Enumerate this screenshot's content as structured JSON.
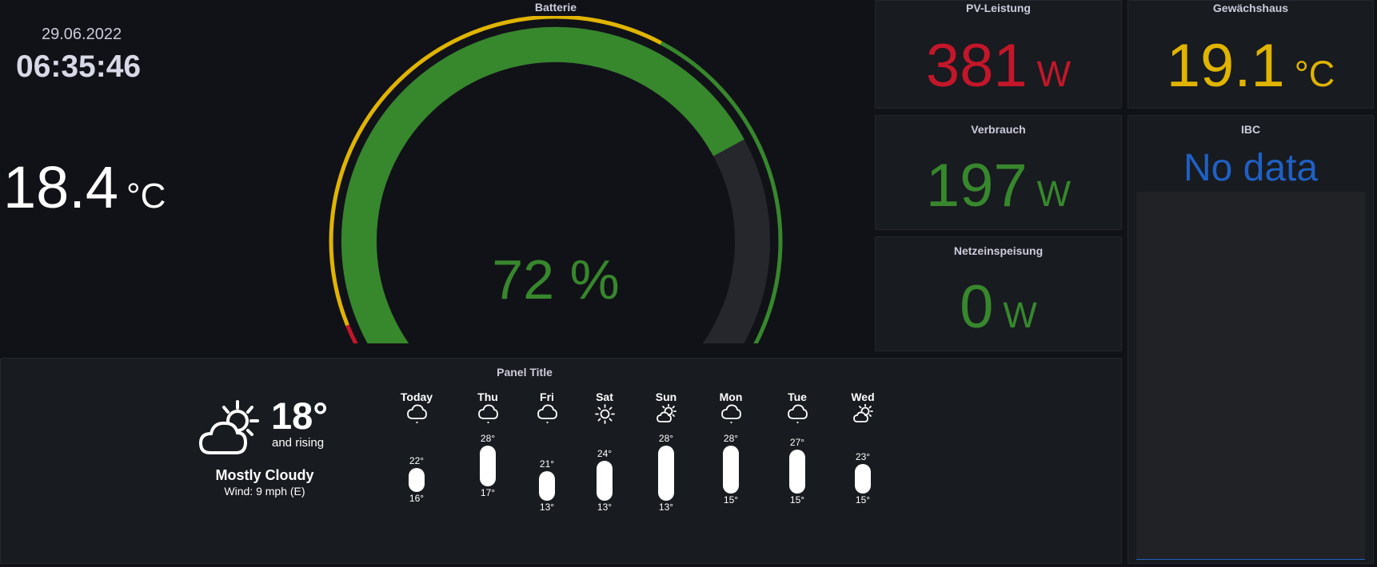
{
  "clock": {
    "date": "29.06.2022",
    "time": "06:35:46"
  },
  "outside_temp": {
    "value": "18.4",
    "unit": "°C"
  },
  "battery": {
    "title": "Batterie",
    "value": "72 %",
    "percent": 72,
    "color": "#37872d",
    "thresholds": {
      "red": "#c4162a",
      "yellow": "#e0b400",
      "green": "#37872d"
    }
  },
  "pv": {
    "title": "PV-Leistung",
    "value": "381",
    "unit": "W",
    "color": "#c4162a"
  },
  "verbrauch": {
    "title": "Verbrauch",
    "value": "197",
    "unit": "W",
    "color": "#37872d"
  },
  "netz": {
    "title": "Netzeinspeisung",
    "value": "0",
    "unit": "W",
    "color": "#37872d"
  },
  "gewaechshaus": {
    "title": "Gewächshaus",
    "value": "19.1",
    "unit": "°C",
    "color": "#e0b400"
  },
  "ibc": {
    "title": "IBC",
    "value": "No data",
    "color": "#1f60c4"
  },
  "weather": {
    "title": "Panel Title",
    "current": {
      "icon": "partly-sunny-icon",
      "temp": "18°",
      "trend": "and rising",
      "condition": "Mostly Cloudy",
      "wind": "Wind: 9 mph (E)"
    },
    "forecast": [
      {
        "day": "Today",
        "icon": "cloud-icon",
        "high": "22°",
        "low": "16°"
      },
      {
        "day": "Thu",
        "icon": "cloud-icon",
        "high": "28°",
        "low": "17°"
      },
      {
        "day": "Fri",
        "icon": "cloud-icon",
        "high": "21°",
        "low": "13°"
      },
      {
        "day": "Sat",
        "icon": "sun-icon",
        "high": "24°",
        "low": "13°"
      },
      {
        "day": "Sun",
        "icon": "partly-sunny-icon",
        "high": "28°",
        "low": "13°"
      },
      {
        "day": "Mon",
        "icon": "cloud-icon",
        "high": "28°",
        "low": "15°"
      },
      {
        "day": "Tue",
        "icon": "cloud-icon",
        "high": "27°",
        "low": "15°"
      },
      {
        "day": "Wed",
        "icon": "partly-sunny-icon",
        "high": "23°",
        "low": "15°"
      }
    ]
  }
}
